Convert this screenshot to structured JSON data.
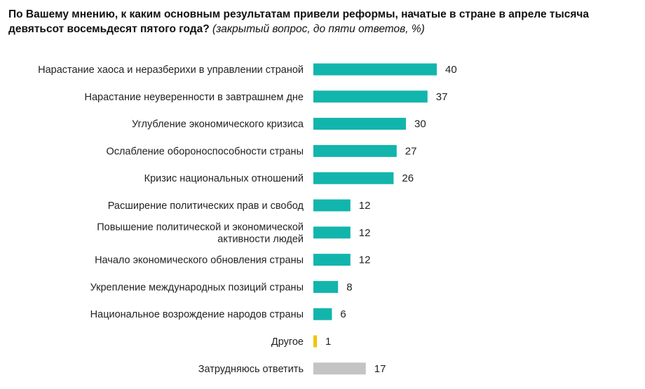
{
  "title": {
    "question": "По Вашему мнению, к каким основным результатам привели реформы, начатые в стране в апреле тысяча девятьсот восемьдесят пятого года?",
    "note": "(закрытый вопрос, до пяти ответов, %)"
  },
  "colors": {
    "main": "#12b5ac",
    "other": "#f3c400",
    "hard_to_say": "#c4c4c4"
  },
  "chart_data": {
    "type": "bar",
    "orientation": "horizontal",
    "title": "По Вашему мнению, к каким основным результатам привели реформы, начатые в стране в апреле тысяча девятьсот восемьдесят пятого года? (закрытый вопрос, до пяти ответов, %)",
    "categories": [
      "Нарастание хаоса и неразберихи в управлении страной",
      "Нарастание неуверенности в завтрашнем дне",
      "Углубление экономического кризиса",
      "Ослабление обороноспособности страны",
      "Кризис национальных отношений",
      "Расширение политических прав и свобод",
      "Повышение политической и экономической активности людей",
      "Начало экономического обновления страны",
      "Укрепление международных позиций страны",
      "Национальное возрождение народов страны",
      "Другое",
      "Затрудняюсь ответить"
    ],
    "values": [
      40,
      37,
      30,
      27,
      26,
      12,
      12,
      12,
      8,
      6,
      1,
      17
    ],
    "bar_colors": [
      "main",
      "main",
      "main",
      "main",
      "main",
      "main",
      "main",
      "main",
      "main",
      "main",
      "other",
      "hard_to_say"
    ],
    "xlim": [
      0,
      40
    ],
    "grid": false,
    "legend": "none"
  }
}
